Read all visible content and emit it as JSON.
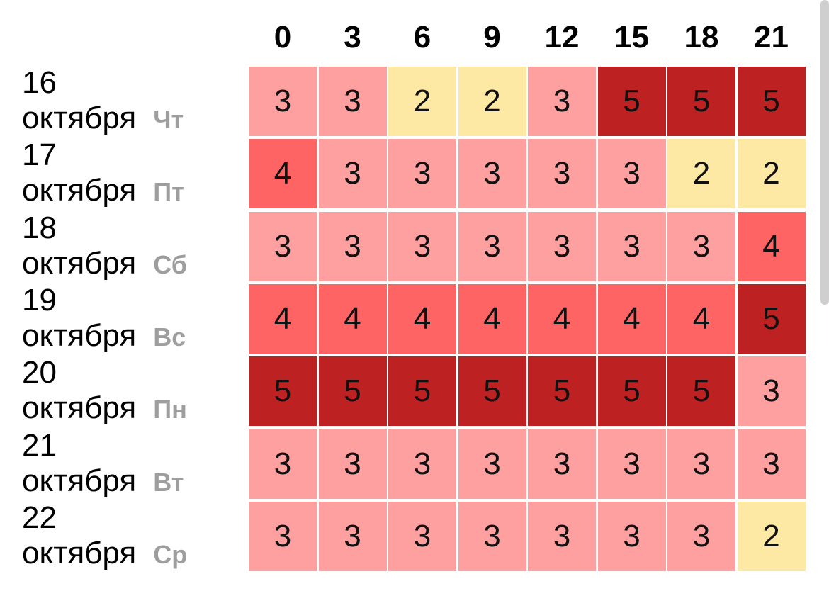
{
  "chart_data": {
    "type": "heatmap",
    "x": [
      "0",
      "3",
      "6",
      "9",
      "12",
      "15",
      "18",
      "21"
    ],
    "rows": [
      {
        "day": "16",
        "month": "октября",
        "weekday": "Чт",
        "values": [
          3,
          3,
          2,
          2,
          3,
          5,
          5,
          5
        ]
      },
      {
        "day": "17",
        "month": "октября",
        "weekday": "Пт",
        "values": [
          4,
          3,
          3,
          3,
          3,
          3,
          2,
          2
        ]
      },
      {
        "day": "18",
        "month": "октября",
        "weekday": "Сб",
        "values": [
          3,
          3,
          3,
          3,
          3,
          3,
          3,
          4
        ]
      },
      {
        "day": "19",
        "month": "октября",
        "weekday": "Вс",
        "values": [
          4,
          4,
          4,
          4,
          4,
          4,
          4,
          5
        ]
      },
      {
        "day": "20",
        "month": "октября",
        "weekday": "Пн",
        "values": [
          5,
          5,
          5,
          5,
          5,
          5,
          5,
          3
        ]
      },
      {
        "day": "21",
        "month": "октября",
        "weekday": "Вт",
        "values": [
          3,
          3,
          3,
          3,
          3,
          3,
          3,
          3
        ]
      },
      {
        "day": "22",
        "month": "октября",
        "weekday": "Ср",
        "values": [
          3,
          3,
          3,
          3,
          3,
          3,
          3,
          2
        ]
      }
    ],
    "colors": {
      "2": "#fde9a3",
      "3": "#fea0a0",
      "4": "#fe6464",
      "5": "#be2121"
    }
  }
}
